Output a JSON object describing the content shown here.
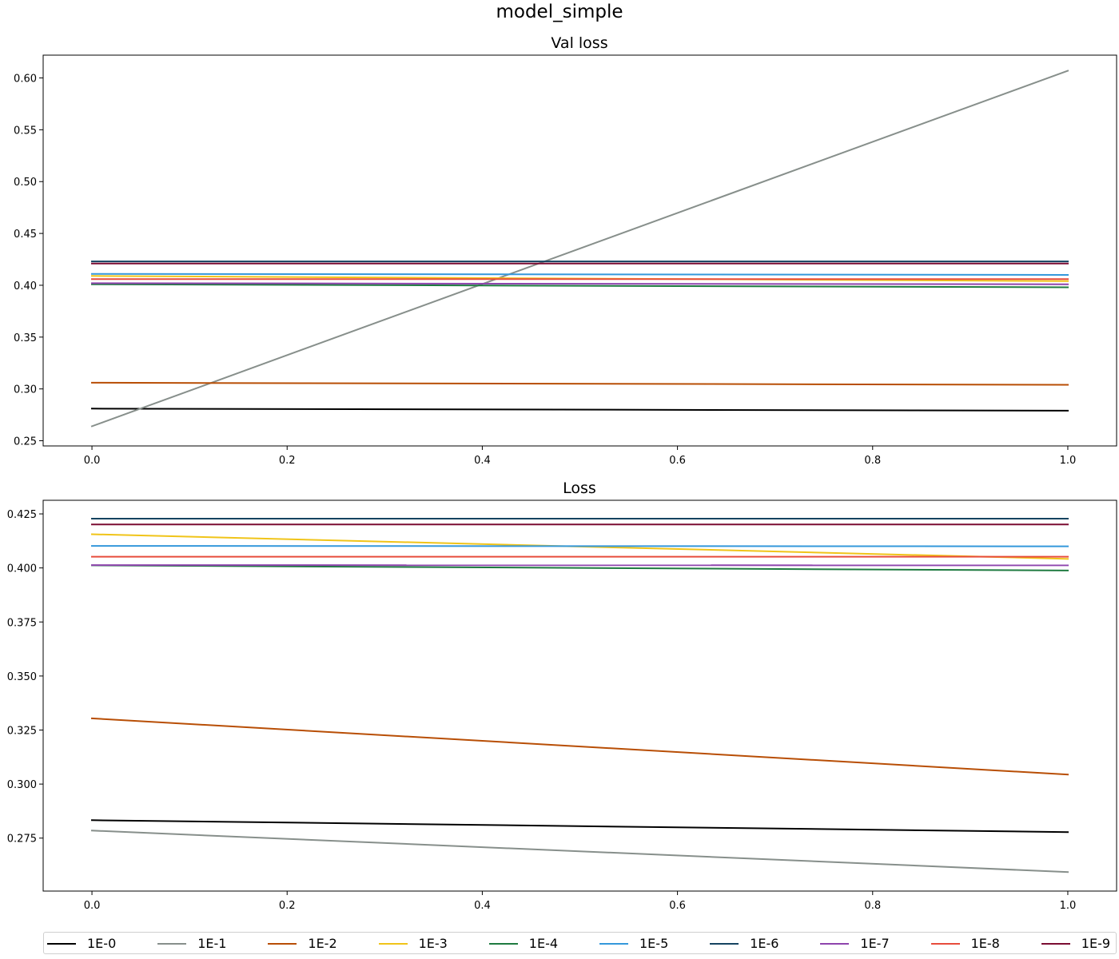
{
  "figure_title": "model_simple",
  "chart_data": [
    {
      "type": "line",
      "title": "Val loss",
      "xlabel": "",
      "ylabel": "",
      "x": [
        0,
        1
      ],
      "xlim": [
        -0.05,
        1.05
      ],
      "ylim": [
        0.245,
        0.622
      ],
      "xticks": [
        0.0,
        0.2,
        0.4,
        0.6,
        0.8,
        1.0
      ],
      "xtick_labels": [
        "0.0",
        "0.2",
        "0.4",
        "0.6",
        "0.8",
        "1.0"
      ],
      "yticks": [
        0.25,
        0.3,
        0.35,
        0.4,
        0.45,
        0.5,
        0.55,
        0.6
      ],
      "ytick_labels": [
        "0.25",
        "0.30",
        "0.35",
        "0.40",
        "0.45",
        "0.50",
        "0.55",
        "0.60"
      ],
      "grid": false,
      "series": [
        {
          "name": "1E-0",
          "values": [
            0.281,
            0.279
          ],
          "color": "#000000"
        },
        {
          "name": "1E-1",
          "values": [
            0.264,
            0.607
          ],
          "color": "#878f8b"
        },
        {
          "name": "1E-2",
          "values": [
            0.306,
            0.304
          ],
          "color": "#b84e05"
        },
        {
          "name": "1E-3",
          "values": [
            0.409,
            0.404
          ],
          "color": "#f0c419"
        },
        {
          "name": "1E-4",
          "values": [
            0.401,
            0.398
          ],
          "color": "#1e7a40"
        },
        {
          "name": "1E-5",
          "values": [
            0.411,
            0.41
          ],
          "color": "#3498db"
        },
        {
          "name": "1E-6",
          "values": [
            0.423,
            0.423
          ],
          "color": "#154360"
        },
        {
          "name": "1E-7",
          "values": [
            0.402,
            0.401
          ],
          "color": "#8e44ad"
        },
        {
          "name": "1E-8",
          "values": [
            0.406,
            0.406
          ],
          "color": "#e74c3c"
        },
        {
          "name": "1E-9",
          "values": [
            0.421,
            0.421
          ],
          "color": "#7b0c32"
        }
      ]
    },
    {
      "type": "line",
      "title": "Loss",
      "xlabel": "",
      "ylabel": "",
      "x": [
        0,
        1
      ],
      "xlim": [
        -0.05,
        1.05
      ],
      "ylim": [
        0.2505,
        0.4313
      ],
      "xticks": [
        0.0,
        0.2,
        0.4,
        0.6,
        0.8,
        1.0
      ],
      "xtick_labels": [
        "0.0",
        "0.2",
        "0.4",
        "0.6",
        "0.8",
        "1.0"
      ],
      "yticks": [
        0.275,
        0.3,
        0.325,
        0.35,
        0.375,
        0.4,
        0.425
      ],
      "ytick_labels": [
        "0.275",
        "0.300",
        "0.325",
        "0.350",
        "0.375",
        "0.400",
        "0.425"
      ],
      "grid": false,
      "series": [
        {
          "name": "1E-0",
          "values": [
            0.2833,
            0.2778
          ],
          "color": "#000000"
        },
        {
          "name": "1E-1",
          "values": [
            0.2785,
            0.2593
          ],
          "color": "#878f8b"
        },
        {
          "name": "1E-2",
          "values": [
            0.3304,
            0.3044
          ],
          "color": "#b84e05"
        },
        {
          "name": "1E-3",
          "values": [
            0.4156,
            0.4042
          ],
          "color": "#f0c419"
        },
        {
          "name": "1E-4",
          "values": [
            0.4012,
            0.3988
          ],
          "color": "#1e7a40"
        },
        {
          "name": "1E-5",
          "values": [
            0.4102,
            0.41
          ],
          "color": "#3498db"
        },
        {
          "name": "1E-6",
          "values": [
            0.4228,
            0.4228
          ],
          "color": "#154360"
        },
        {
          "name": "1E-7",
          "values": [
            0.4013,
            0.4012
          ],
          "color": "#8e44ad"
        },
        {
          "name": "1E-8",
          "values": [
            0.4052,
            0.4052
          ],
          "color": "#e74c3c"
        },
        {
          "name": "1E-9",
          "values": [
            0.4201,
            0.4201
          ],
          "color": "#7b0c32"
        }
      ]
    }
  ],
  "legend": {
    "placement": "bottom",
    "items": [
      {
        "label": "1E-0",
        "color": "#000000"
      },
      {
        "label": "1E-1",
        "color": "#878f8b"
      },
      {
        "label": "1E-2",
        "color": "#b84e05"
      },
      {
        "label": "1E-3",
        "color": "#f0c419"
      },
      {
        "label": "1E-4",
        "color": "#1e7a40"
      },
      {
        "label": "1E-5",
        "color": "#3498db"
      },
      {
        "label": "1E-6",
        "color": "#154360"
      },
      {
        "label": "1E-7",
        "color": "#8e44ad"
      },
      {
        "label": "1E-8",
        "color": "#e74c3c"
      },
      {
        "label": "1E-9",
        "color": "#7b0c32"
      }
    ]
  }
}
